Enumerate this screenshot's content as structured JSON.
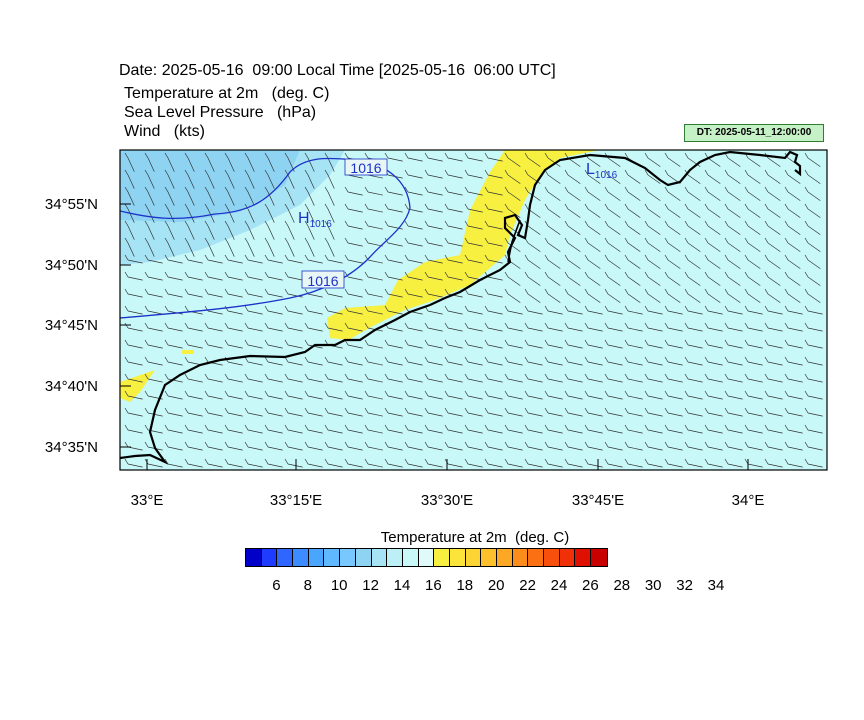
{
  "header": {
    "date_line": "Date: 2025-05-16  09:00 Local Time [2025-05-16  06:00 UTC]",
    "line1": "Temperature at 2m   (deg. C)",
    "line2": "Sea Level Pressure   (hPa)",
    "line3": "Wind   (kts)",
    "dt_badge": "DT: 2025-05-11_12:00:00"
  },
  "map": {
    "lat_labels": [
      "34°55'N",
      "34°50'N",
      "34°45'N",
      "34°40'N",
      "34°35'N"
    ],
    "lon_labels": [
      "33°E",
      "33°15'E",
      "33°30'E",
      "33°45'E",
      "34°E"
    ],
    "contour_labels": [
      "1016",
      "1016"
    ],
    "high_label": "H",
    "high_value": "1016",
    "low_label": "L",
    "low_value": "1016",
    "colors": {
      "sea": "#c8f8f8",
      "land_cool": "#a6e3f5",
      "land_cooler": "#8fd3f3",
      "warm": "#f8f040",
      "isobar": "#1c32c8",
      "coast": "#000000"
    }
  },
  "colorbar": {
    "title": "Temperature at 2m  (deg. C)",
    "colors": [
      "#0000c8",
      "#1e3cff",
      "#2e66ff",
      "#3c8cff",
      "#4aa5ff",
      "#60b8ff",
      "#78c8ff",
      "#8fd3f3",
      "#a6e3f5",
      "#bdeff7",
      "#c8f8f8",
      "#e0fafa",
      "#f8f040",
      "#fce43a",
      "#fcd434",
      "#fcc02c",
      "#fca824",
      "#fc8c1c",
      "#fc7014",
      "#f8500c",
      "#f03008",
      "#e01000",
      "#c80000"
    ],
    "labels": [
      "6",
      "8",
      "10",
      "12",
      "14",
      "16",
      "18",
      "20",
      "22",
      "24",
      "26",
      "28",
      "30",
      "32",
      "34"
    ]
  }
}
